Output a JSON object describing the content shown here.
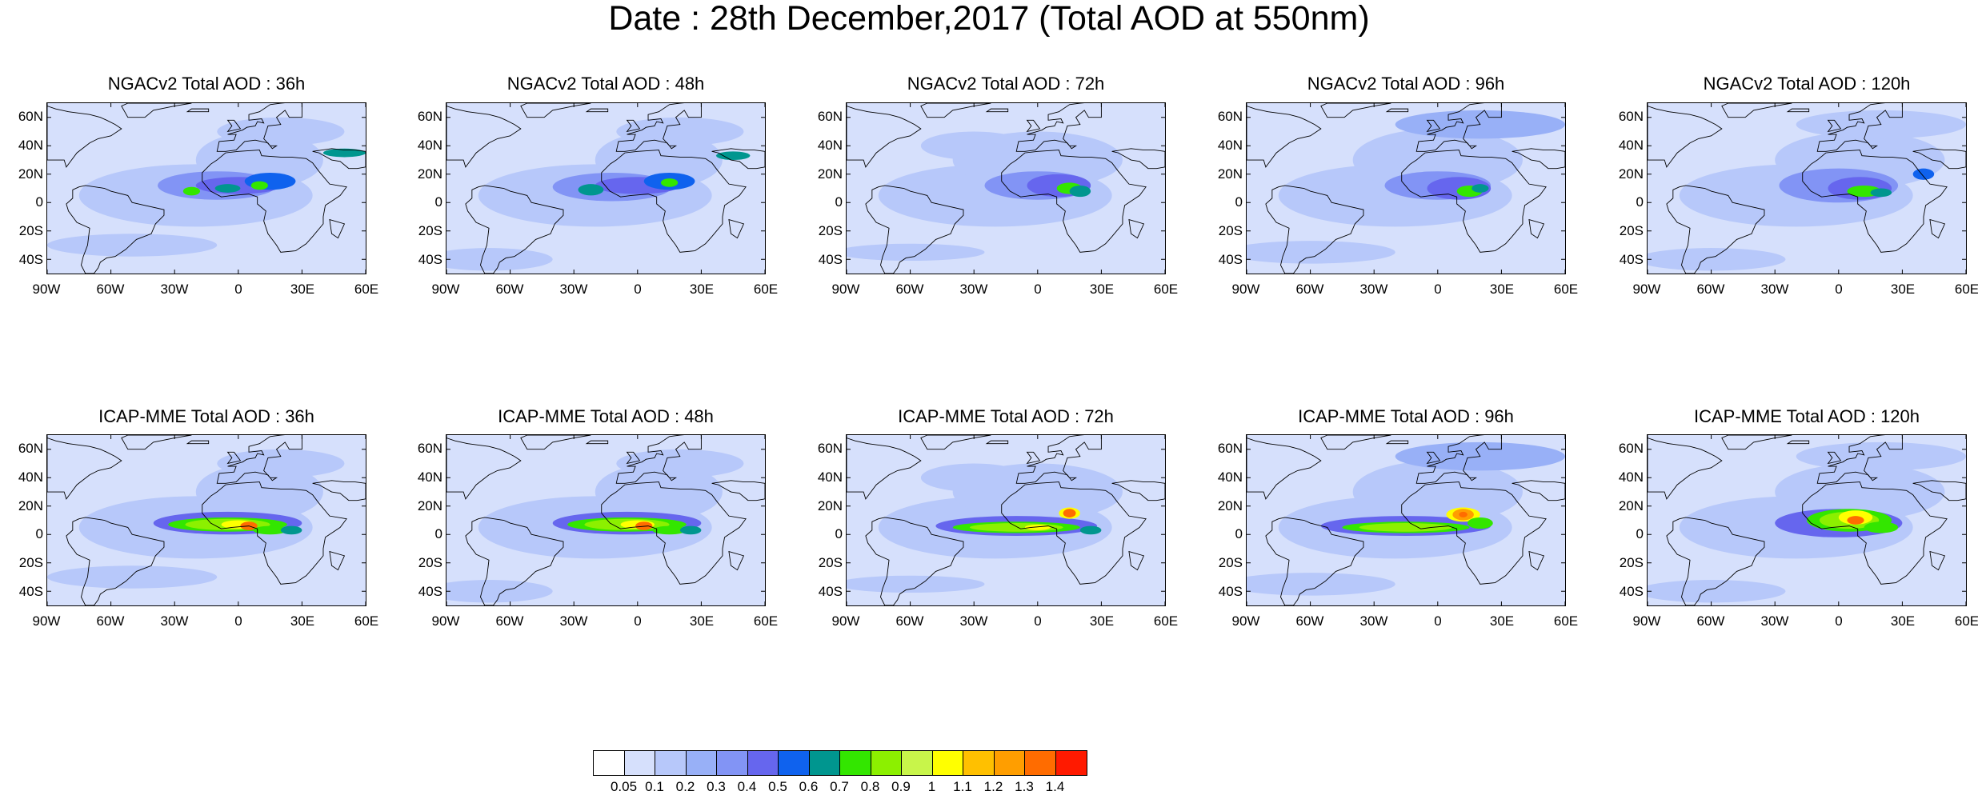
{
  "title": "Date : 28th December,2017 (Total AOD at 550nm)",
  "rows": [
    {
      "model": "NGACv2",
      "panels": [
        {
          "title": "NGACv2 Total AOD : 36h"
        },
        {
          "title": "NGACv2 Total AOD : 48h"
        },
        {
          "title": "NGACv2 Total AOD : 72h"
        },
        {
          "title": "NGACv2 Total AOD : 96h"
        },
        {
          "title": "NGACv2 Total AOD : 120h"
        }
      ]
    },
    {
      "model": "ICAP-MME",
      "panels": [
        {
          "title": "ICAP-MME Total AOD : 36h"
        },
        {
          "title": "ICAP-MME Total AOD : 48h"
        },
        {
          "title": "ICAP-MME Total AOD : 72h"
        },
        {
          "title": "ICAP-MME Total AOD : 96h"
        },
        {
          "title": "ICAP-MME Total AOD : 120h"
        }
      ]
    }
  ],
  "lat_ticks": [
    "60N",
    "40N",
    "20N",
    "0",
    "20S",
    "40S"
  ],
  "lon_ticks": [
    "90W",
    "60W",
    "30W",
    "0",
    "30E",
    "60E"
  ],
  "colorbar": {
    "labels": [
      "0.05",
      "0.1",
      "0.2",
      "0.3",
      "0.4",
      "0.5",
      "0.6",
      "0.7",
      "0.8",
      "0.9",
      "1",
      "1.1",
      "1.2",
      "1.3",
      "1.4"
    ],
    "colors": [
      "#ffffff",
      "#d6e0fc",
      "#b7c8fa",
      "#98b0f7",
      "#8294f5",
      "#6666ee",
      "#0f62ee",
      "#00968f",
      "#33e600",
      "#8cf000",
      "#c8f54a",
      "#ffff00",
      "#ffc000",
      "#ff9e00",
      "#ff6c00",
      "#ff1a00"
    ]
  }
}
